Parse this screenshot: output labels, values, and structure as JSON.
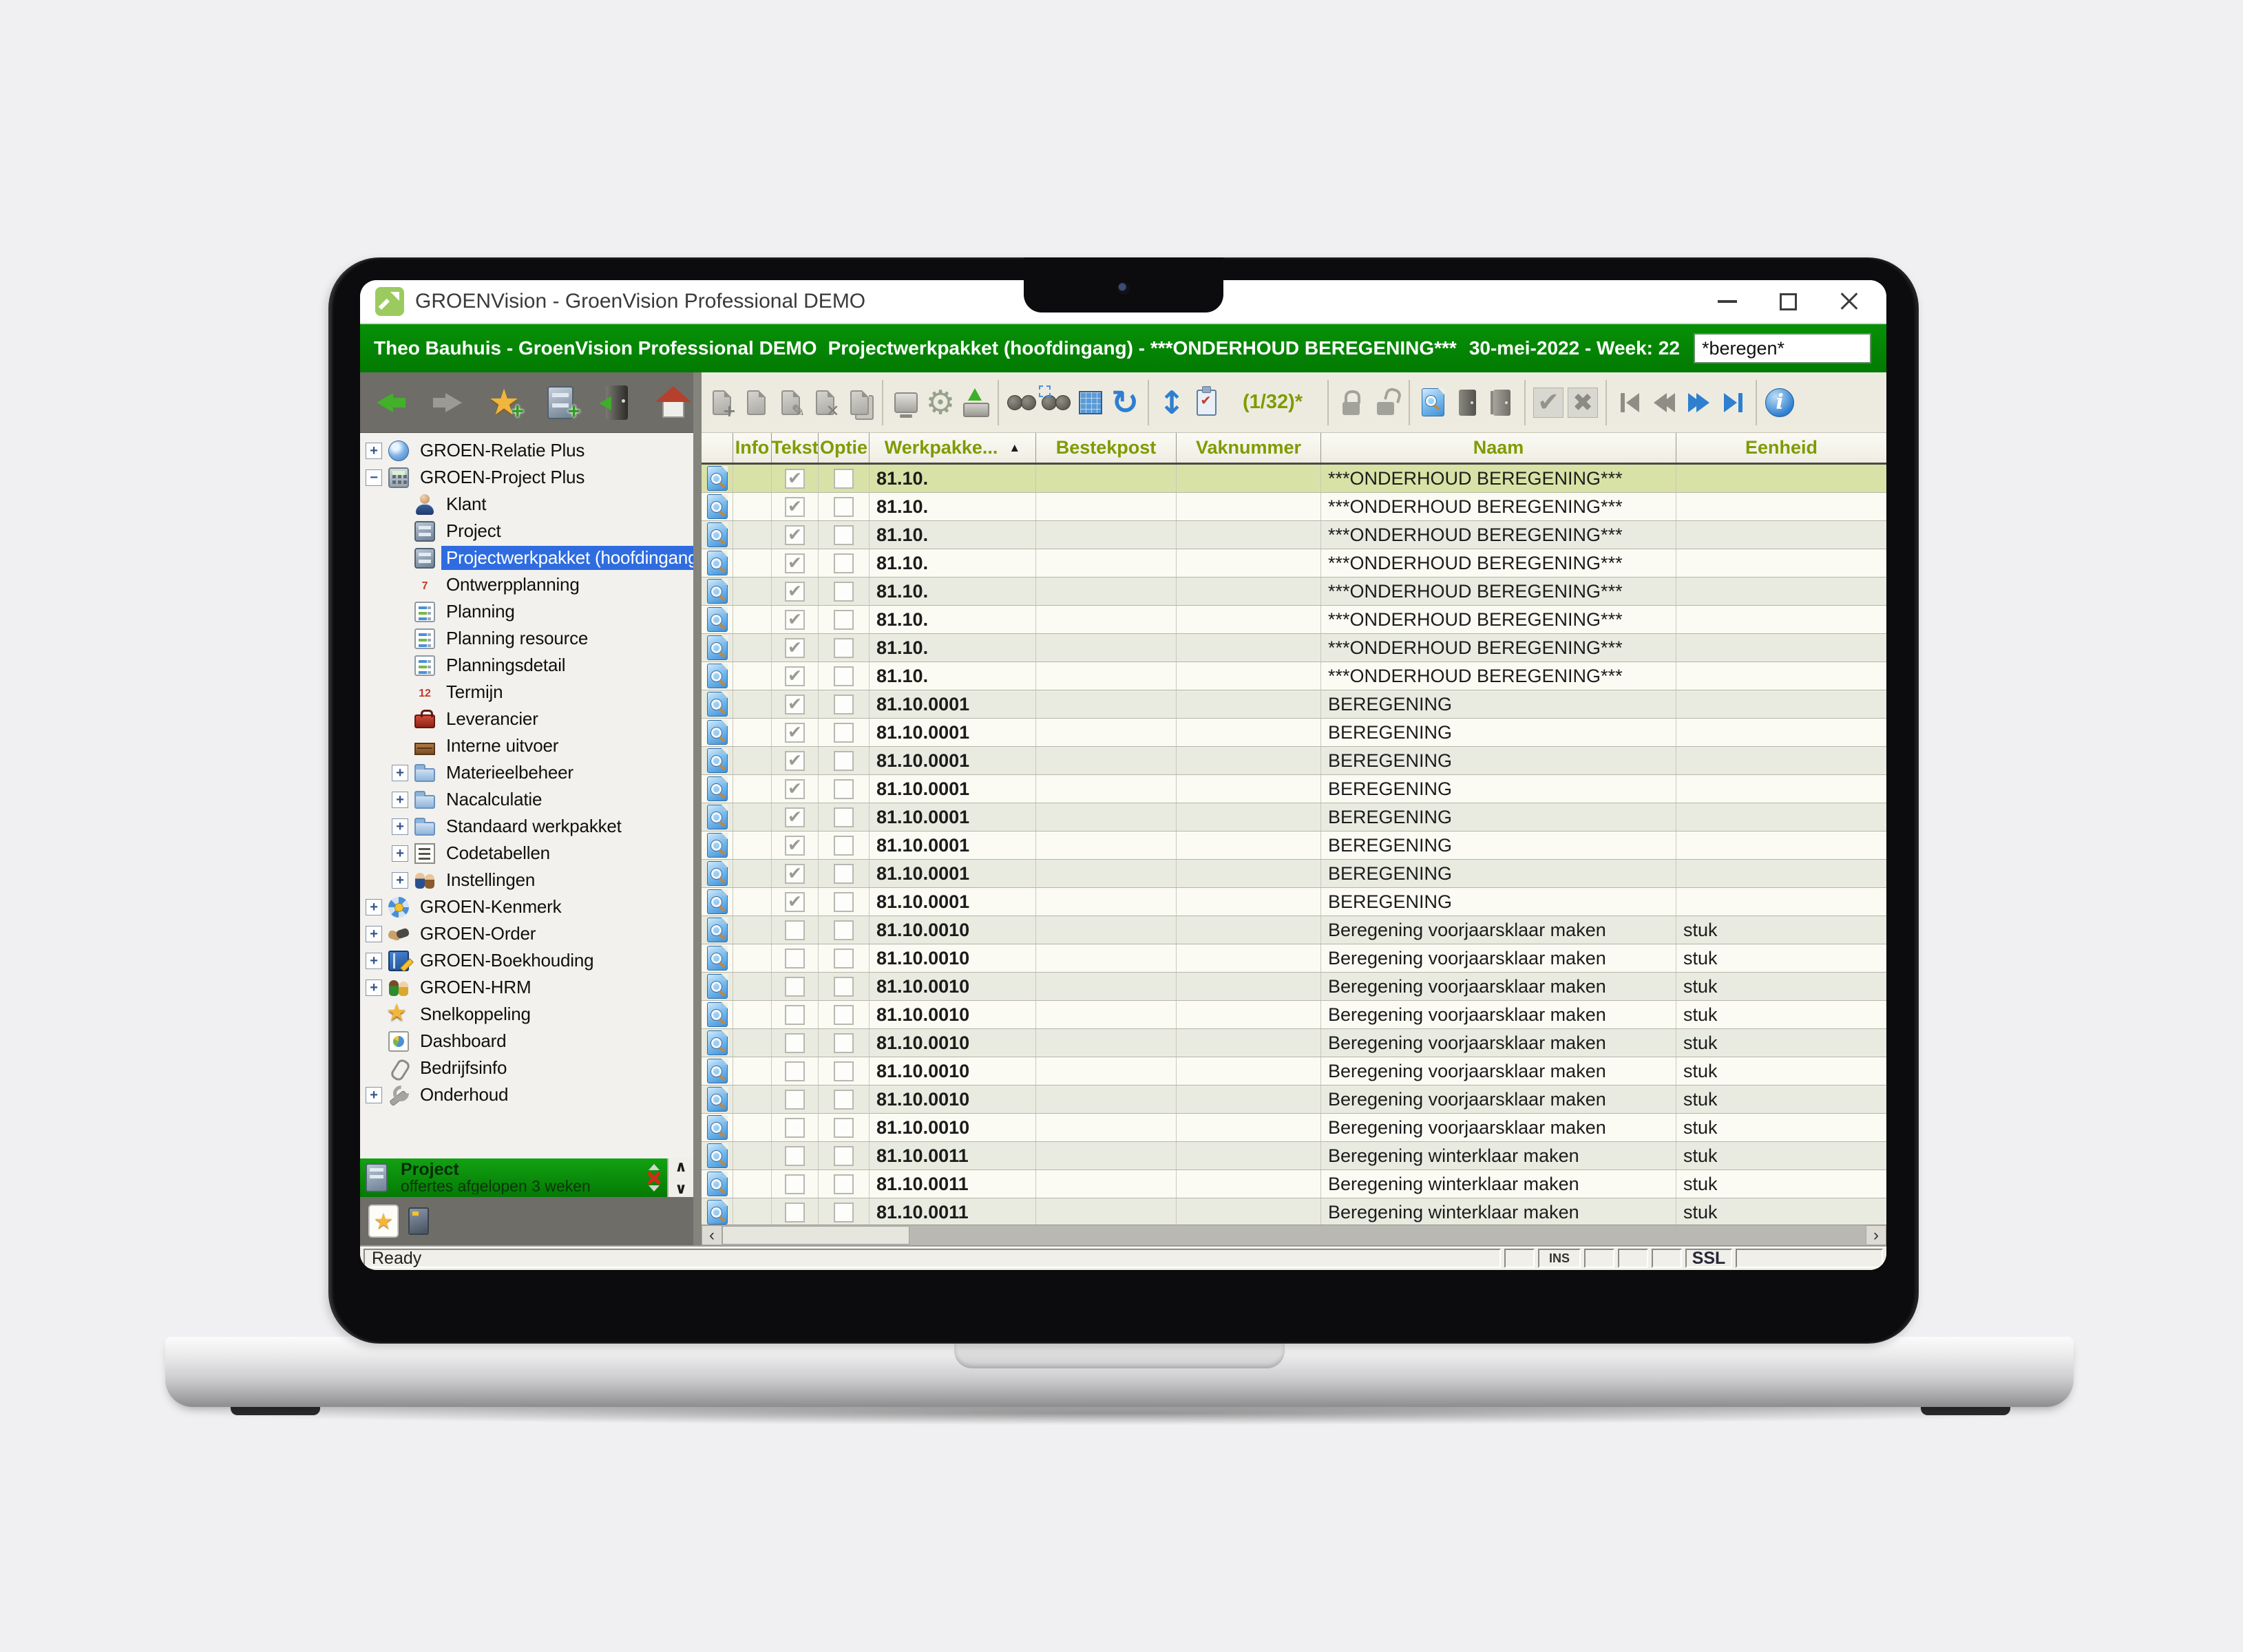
{
  "window": {
    "title": "GROENVision - GroenVision Professional DEMO"
  },
  "header": {
    "user_title": "Theo Bauhuis - GroenVision Professional DEMO",
    "context_title": "Projectwerkpakket (hoofdingang) - ***ONDERHOUD BEREGENING***",
    "date_week": "30-mei-2022 - Week: 22",
    "search": {
      "value": "*beregen*"
    }
  },
  "colors": {
    "brand_green": "#027a02",
    "selected_row": "#d9e2a6",
    "header_text_olive": "#7e9b00",
    "tree_selection_blue": "#2e6ce0"
  },
  "sidebar": {
    "toolbar_icons": [
      "back-arrow",
      "forward-arrow",
      "favorite-add-star",
      "archive-add",
      "exit-door",
      "home"
    ],
    "tree": {
      "items": [
        {
          "label": "GROEN-Relatie Plus",
          "level": 0,
          "expander": "+",
          "icon": "globe"
        },
        {
          "label": "GROEN-Project Plus",
          "level": 0,
          "expander": "-",
          "icon": "calc"
        },
        {
          "label": "Klant",
          "level": 1,
          "expander": null,
          "icon": "person"
        },
        {
          "label": "Project",
          "level": 1,
          "expander": null,
          "icon": "cabinet"
        },
        {
          "label": "Projectwerkpakket (hoofdingang)",
          "level": 1,
          "expander": null,
          "icon": "cabinet",
          "selected": true
        },
        {
          "label": "Ontwerpplanning",
          "level": 1,
          "expander": null,
          "icon": "cal7"
        },
        {
          "label": "Planning",
          "level": 1,
          "expander": null,
          "icon": "plan"
        },
        {
          "label": "Planning resource",
          "level": 1,
          "expander": null,
          "icon": "plan"
        },
        {
          "label": "Planningsdetail",
          "level": 1,
          "expander": null,
          "icon": "plan"
        },
        {
          "label": "Termijn",
          "level": 1,
          "expander": null,
          "icon": "cal12"
        },
        {
          "label": "Leverancier",
          "level": 1,
          "expander": null,
          "icon": "toolbox"
        },
        {
          "label": "Interne uitvoer",
          "level": 1,
          "expander": null,
          "icon": "crate"
        },
        {
          "label": "Materieelbeheer",
          "level": 1,
          "expander": "+",
          "icon": "folder"
        },
        {
          "label": "Nacalculatie",
          "level": 1,
          "expander": "+",
          "icon": "folder"
        },
        {
          "label": "Standaard werkpakket",
          "level": 1,
          "expander": "+",
          "icon": "folder"
        },
        {
          "label": "Codetabellen",
          "level": 1,
          "expander": "+",
          "icon": "codes"
        },
        {
          "label": "Instellingen",
          "level": 1,
          "expander": "+",
          "icon": "people"
        },
        {
          "label": "GROEN-Kenmerk",
          "level": 0,
          "expander": "+",
          "icon": "pinwheel"
        },
        {
          "label": "GROEN-Order",
          "level": 0,
          "expander": "+",
          "icon": "handshake"
        },
        {
          "label": "GROEN-Boekhouding",
          "level": 0,
          "expander": "+",
          "icon": "book"
        },
        {
          "label": "GROEN-HRM",
          "level": 0,
          "expander": "+",
          "icon": "hrm"
        },
        {
          "label": "Snelkoppeling",
          "level": 0,
          "expander": null,
          "icon": "star"
        },
        {
          "label": "Dashboard",
          "level": 0,
          "expander": null,
          "icon": "dash"
        },
        {
          "label": "Bedrijfsinfo",
          "level": 0,
          "expander": null,
          "icon": "clip"
        },
        {
          "label": "Onderhoud",
          "level": 0,
          "expander": "+",
          "icon": "wrench"
        }
      ]
    },
    "panel": {
      "title": "Project",
      "subtitle": "offertes afgelopen 3 weken",
      "icons": [
        "cabinet",
        "scroll-up",
        "close-x",
        "scroll-down",
        "favorite-star",
        "note"
      ]
    }
  },
  "toolbar": {
    "counter": "(1/32)*",
    "icons": [
      "new-record",
      "open-record",
      "edit-record",
      "delete-record",
      "copy-record",
      "print-system",
      "settings-gear",
      "export-save",
      "search-binoculars",
      "search-selection",
      "table-view",
      "refresh",
      "sort-updown",
      "checklist-clipboard",
      "record-counter",
      "lock",
      "unlock",
      "preview-document",
      "door-closed",
      "door-open",
      "confirm-check",
      "cancel-x",
      "nav-first",
      "nav-prev",
      "nav-next",
      "nav-last",
      "info"
    ]
  },
  "table": {
    "columns": [
      {
        "key": "preview",
        "label": ""
      },
      {
        "key": "info",
        "label": "Info"
      },
      {
        "key": "tekst",
        "label": "Tekst"
      },
      {
        "key": "optie",
        "label": "Optie"
      },
      {
        "key": "werkpakket",
        "label": "Werkpakke...",
        "sorted": "asc"
      },
      {
        "key": "bestekpost",
        "label": "Bestekpost"
      },
      {
        "key": "vaknummer",
        "label": "Vaknummer"
      },
      {
        "key": "naam",
        "label": "Naam"
      },
      {
        "key": "eenheid",
        "label": "Eenheid"
      }
    ],
    "rows": [
      {
        "code": "81.10.",
        "naam": "***ONDERHOUD BEREGENING***",
        "eenheid": "",
        "tekst": true,
        "optie": false,
        "selected": true
      },
      {
        "code": "81.10.",
        "naam": "***ONDERHOUD BEREGENING***",
        "eenheid": "",
        "tekst": true,
        "optie": false
      },
      {
        "code": "81.10.",
        "naam": "***ONDERHOUD BEREGENING***",
        "eenheid": "",
        "tekst": true,
        "optie": false
      },
      {
        "code": "81.10.",
        "naam": "***ONDERHOUD BEREGENING***",
        "eenheid": "",
        "tekst": true,
        "optie": false
      },
      {
        "code": "81.10.",
        "naam": "***ONDERHOUD BEREGENING***",
        "eenheid": "",
        "tekst": true,
        "optie": false
      },
      {
        "code": "81.10.",
        "naam": "***ONDERHOUD BEREGENING***",
        "eenheid": "",
        "tekst": true,
        "optie": false
      },
      {
        "code": "81.10.",
        "naam": "***ONDERHOUD BEREGENING***",
        "eenheid": "",
        "tekst": true,
        "optie": false
      },
      {
        "code": "81.10.",
        "naam": "***ONDERHOUD BEREGENING***",
        "eenheid": "",
        "tekst": true,
        "optie": false
      },
      {
        "code": "81.10.0001",
        "naam": "BEREGENING",
        "eenheid": "",
        "tekst": true,
        "optie": false
      },
      {
        "code": "81.10.0001",
        "naam": "BEREGENING",
        "eenheid": "",
        "tekst": true,
        "optie": false
      },
      {
        "code": "81.10.0001",
        "naam": "BEREGENING",
        "eenheid": "",
        "tekst": true,
        "optie": false
      },
      {
        "code": "81.10.0001",
        "naam": "BEREGENING",
        "eenheid": "",
        "tekst": true,
        "optie": false
      },
      {
        "code": "81.10.0001",
        "naam": "BEREGENING",
        "eenheid": "",
        "tekst": true,
        "optie": false
      },
      {
        "code": "81.10.0001",
        "naam": "BEREGENING",
        "eenheid": "",
        "tekst": true,
        "optie": false
      },
      {
        "code": "81.10.0001",
        "naam": "BEREGENING",
        "eenheid": "",
        "tekst": true,
        "optie": false
      },
      {
        "code": "81.10.0001",
        "naam": "BEREGENING",
        "eenheid": "",
        "tekst": true,
        "optie": false
      },
      {
        "code": "81.10.0010",
        "naam": "Beregening voorjaarsklaar maken",
        "eenheid": "stuk",
        "tekst": false,
        "optie": false
      },
      {
        "code": "81.10.0010",
        "naam": "Beregening voorjaarsklaar maken",
        "eenheid": "stuk",
        "tekst": false,
        "optie": false
      },
      {
        "code": "81.10.0010",
        "naam": "Beregening voorjaarsklaar maken",
        "eenheid": "stuk",
        "tekst": false,
        "optie": false
      },
      {
        "code": "81.10.0010",
        "naam": "Beregening voorjaarsklaar maken",
        "eenheid": "stuk",
        "tekst": false,
        "optie": false
      },
      {
        "code": "81.10.0010",
        "naam": "Beregening voorjaarsklaar maken",
        "eenheid": "stuk",
        "tekst": false,
        "optie": false
      },
      {
        "code": "81.10.0010",
        "naam": "Beregening voorjaarsklaar maken",
        "eenheid": "stuk",
        "tekst": false,
        "optie": false
      },
      {
        "code": "81.10.0010",
        "naam": "Beregening voorjaarsklaar maken",
        "eenheid": "stuk",
        "tekst": false,
        "optie": false
      },
      {
        "code": "81.10.0010",
        "naam": "Beregening voorjaarsklaar maken",
        "eenheid": "stuk",
        "tekst": false,
        "optie": false
      },
      {
        "code": "81.10.0011",
        "naam": "Beregening winterklaar maken",
        "eenheid": "stuk",
        "tekst": false,
        "optie": false
      },
      {
        "code": "81.10.0011",
        "naam": "Beregening winterklaar maken",
        "eenheid": "stuk",
        "tekst": false,
        "optie": false
      },
      {
        "code": "81.10.0011",
        "naam": "Beregening winterklaar maken",
        "eenheid": "stuk",
        "tekst": false,
        "optie": false
      }
    ]
  },
  "status": {
    "ready": "Ready",
    "ins": "INS",
    "ssl": "SSL"
  }
}
